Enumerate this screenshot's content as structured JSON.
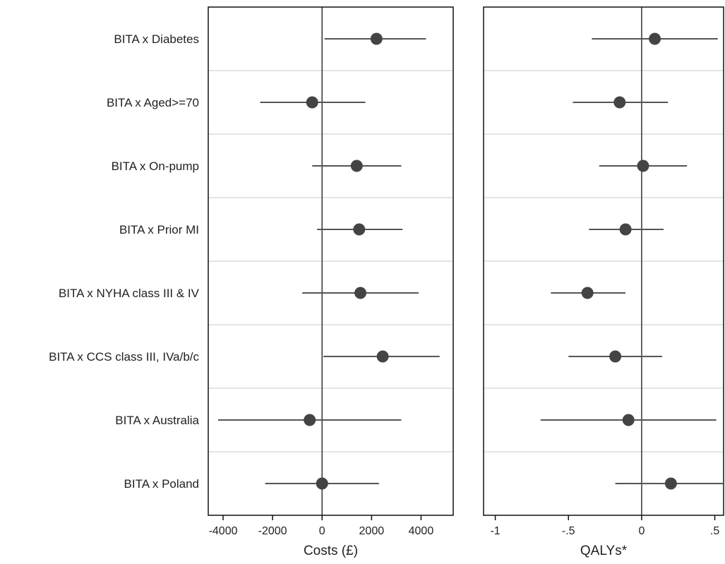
{
  "chart_data": [
    {
      "type": "scatter",
      "subtype": "forest-plot",
      "title": "",
      "xlabel": "Costs (£)",
      "ylabel": "",
      "xlim": [
        -4600,
        5300
      ],
      "ticks": [
        -4000,
        -2000,
        0,
        2000,
        4000
      ],
      "tick_labels": [
        "-4000",
        "-2000",
        "0",
        "2000",
        "4000"
      ],
      "reference_line": 0,
      "grid": "horizontal separators",
      "categories": [
        "BITA x Diabetes",
        "BITA x Aged>=70",
        "BITA x On-pump",
        "BITA x Prior MI",
        "BITA x NYHA class III & IV",
        "BITA x CCS class III, IVa/b/c",
        "BITA x Australia",
        "BITA x Poland"
      ],
      "points": [
        {
          "estimate": 2200,
          "lower": 100,
          "upper": 4200
        },
        {
          "estimate": -400,
          "lower": -2500,
          "upper": 1750
        },
        {
          "estimate": 1400,
          "lower": -400,
          "upper": 3200
        },
        {
          "estimate": 1500,
          "lower": -200,
          "upper": 3250
        },
        {
          "estimate": 1550,
          "lower": -800,
          "upper": 3900
        },
        {
          "estimate": 2450,
          "lower": 50,
          "upper": 4750
        },
        {
          "estimate": -500,
          "lower": -4200,
          "upper": 3200
        },
        {
          "estimate": 0,
          "lower": -2300,
          "upper": 2300
        }
      ]
    },
    {
      "type": "scatter",
      "subtype": "forest-plot",
      "title": "",
      "xlabel": "QALYs*",
      "ylabel": "",
      "xlim": [
        -1.08,
        0.56
      ],
      "ticks": [
        -1,
        -0.5,
        0,
        0.5
      ],
      "tick_labels": [
        "-1",
        "-.5",
        "0",
        ".5"
      ],
      "reference_line": 0,
      "grid": "horizontal separators",
      "categories": [
        "BITA x Diabetes",
        "BITA x Aged>=70",
        "BITA x On-pump",
        "BITA x Prior MI",
        "BITA x NYHA class III & IV",
        "BITA x CCS class III, IVa/b/c",
        "BITA x Australia",
        "BITA x Poland"
      ],
      "points": [
        {
          "estimate": 0.09,
          "lower": -0.34,
          "upper": 0.52
        },
        {
          "estimate": -0.15,
          "lower": -0.47,
          "upper": 0.18
        },
        {
          "estimate": 0.01,
          "lower": -0.29,
          "upper": 0.31
        },
        {
          "estimate": -0.11,
          "lower": -0.36,
          "upper": 0.15
        },
        {
          "estimate": -0.37,
          "lower": -0.62,
          "upper": -0.11
        },
        {
          "estimate": -0.18,
          "lower": -0.5,
          "upper": 0.14
        },
        {
          "estimate": -0.09,
          "lower": -0.69,
          "upper": 0.51
        },
        {
          "estimate": 0.2,
          "lower": -0.18,
          "upper": 0.58
        }
      ]
    }
  ]
}
